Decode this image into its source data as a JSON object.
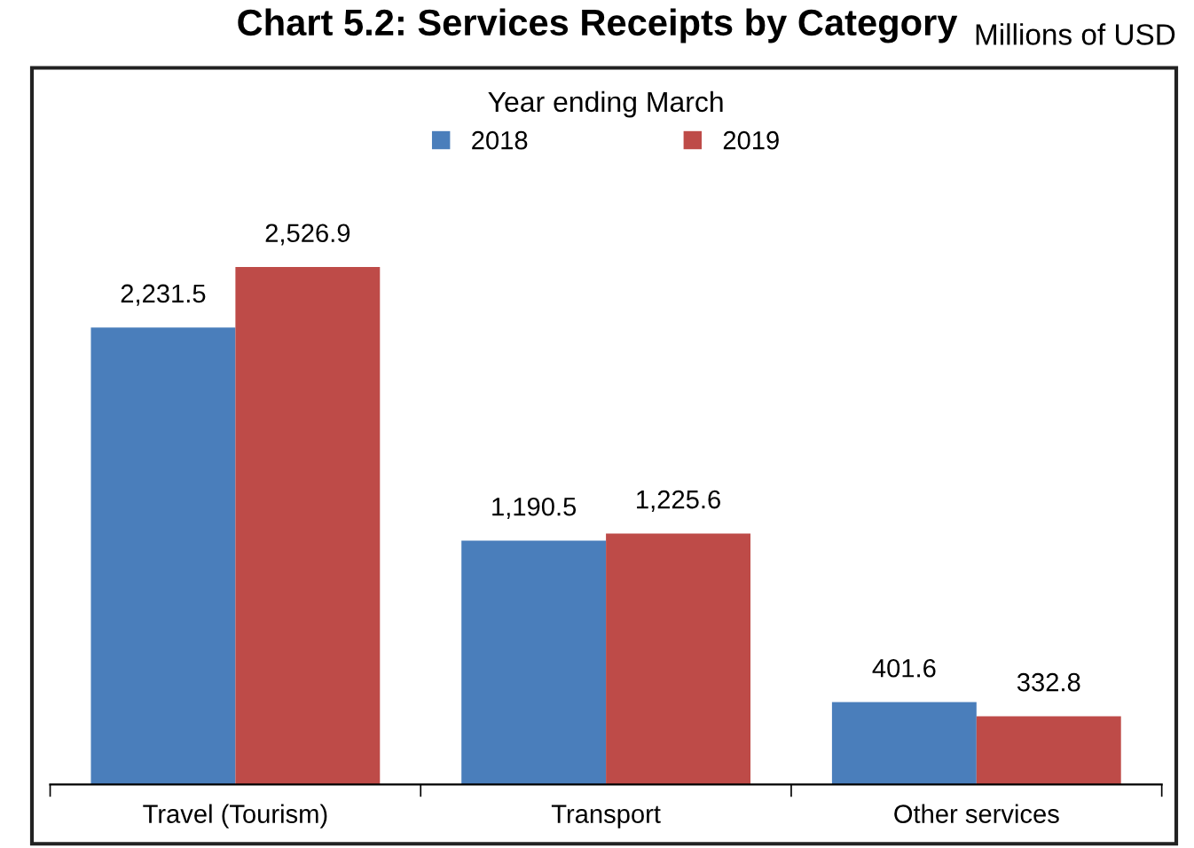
{
  "chart_data": {
    "type": "bar",
    "title": "Chart 5.2: Services Receipts by Category",
    "annotations": [
      "Millions of USD"
    ],
    "legend_title": "Year ending March",
    "categories": [
      "Travel (Tourism)",
      "Transport",
      "Other services"
    ],
    "series": [
      {
        "name": "2018",
        "color": "#4a7ebb",
        "values": [
          2231.5,
          1190.5,
          401.6
        ],
        "value_labels": [
          "2,231.5",
          "1,190.5",
          "401.6"
        ]
      },
      {
        "name": "2019",
        "color": "#be4b48",
        "values": [
          2526.9,
          1225.6,
          332.8
        ],
        "value_labels": [
          "2,526.9",
          "1,225.6",
          "332.8"
        ]
      }
    ],
    "ylim": [
      0,
      3500
    ],
    "tick_labels": "x",
    "legend": "top",
    "grid": false
  }
}
